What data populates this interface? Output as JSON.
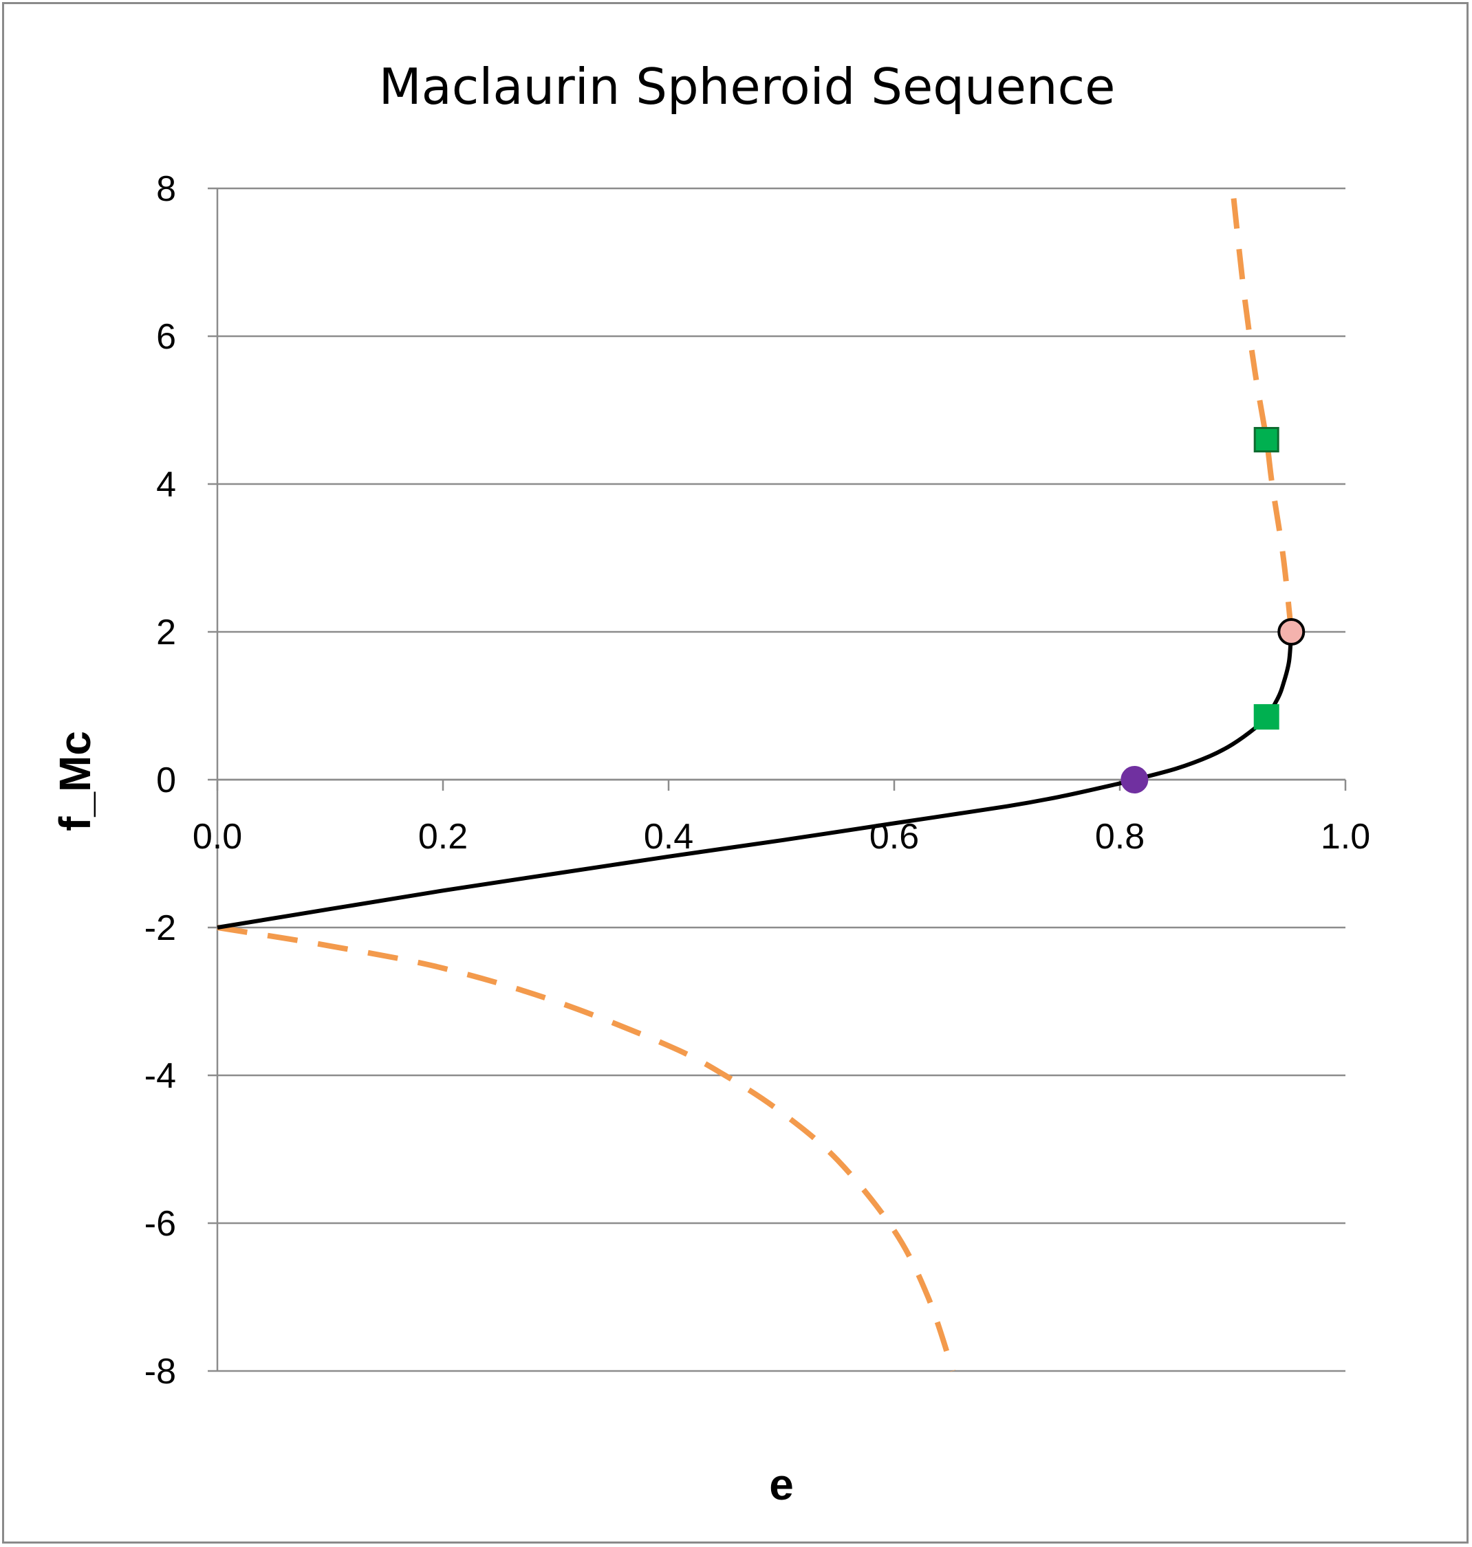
{
  "chart_data": {
    "type": "line",
    "title": "Maclaurin Spheroid Sequence",
    "xlabel": "e",
    "ylabel": "f_Mc",
    "xlim": [
      0.0,
      1.0
    ],
    "ylim": [
      -8,
      8
    ],
    "x_ticks": [
      "0.0",
      "0.2",
      "0.4",
      "0.6",
      "0.8",
      "1.0"
    ],
    "y_ticks": [
      "8",
      "6",
      "4",
      "2",
      "0",
      "-2",
      "-4",
      "-6",
      "-8"
    ],
    "grid": "horizontal",
    "legend": "none",
    "series": [
      {
        "style": "solid",
        "color": "#000000",
        "points": [
          [
            0.0,
            -2.0
          ],
          [
            0.1,
            -1.75
          ],
          [
            0.2,
            -1.5
          ],
          [
            0.3,
            -1.27
          ],
          [
            0.4,
            -1.04
          ],
          [
            0.5,
            -0.82
          ],
          [
            0.6,
            -0.59
          ],
          [
            0.7,
            -0.36
          ],
          [
            0.75,
            -0.22
          ],
          [
            0.8,
            -0.05
          ],
          [
            0.813,
            0.0
          ],
          [
            0.85,
            0.15
          ],
          [
            0.88,
            0.32
          ],
          [
            0.9,
            0.48
          ],
          [
            0.92,
            0.7
          ],
          [
            0.93,
            0.85
          ],
          [
            0.94,
            1.1
          ],
          [
            0.945,
            1.3
          ],
          [
            0.95,
            1.6
          ],
          [
            0.952,
            2.0
          ]
        ]
      },
      {
        "style": "dashed",
        "color": "#f39a4c",
        "points": [
          [
            0.952,
            2.0
          ],
          [
            0.945,
            3.0
          ],
          [
            0.935,
            4.0
          ],
          [
            0.93,
            4.6
          ],
          [
            0.92,
            5.5
          ],
          [
            0.91,
            6.6
          ],
          [
            0.9,
            8.0
          ]
        ]
      },
      {
        "style": "dashed",
        "color": "#f39a4c",
        "points": [
          [
            0.0,
            -2.0
          ],
          [
            0.1,
            -2.25
          ],
          [
            0.2,
            -2.55
          ],
          [
            0.3,
            -3.0
          ],
          [
            0.4,
            -3.6
          ],
          [
            0.45,
            -4.0
          ],
          [
            0.5,
            -4.5
          ],
          [
            0.55,
            -5.15
          ],
          [
            0.6,
            -6.1
          ],
          [
            0.63,
            -7.0
          ],
          [
            0.652,
            -8.0
          ]
        ]
      }
    ],
    "markers": [
      {
        "x": 0.813,
        "y": 0.0,
        "shape": "circle",
        "color": "#7030a0",
        "outline": "#7030a0"
      },
      {
        "x": 0.93,
        "y": 0.85,
        "shape": "square",
        "color": "#00b050",
        "outline": "#00b050"
      },
      {
        "x": 0.93,
        "y": 4.6,
        "shape": "square",
        "color": "#00b050",
        "outline": "#0e6b30"
      },
      {
        "x": 0.952,
        "y": 2.0,
        "shape": "circle",
        "color": "#f4b2ad",
        "outline": "#000000"
      }
    ]
  }
}
